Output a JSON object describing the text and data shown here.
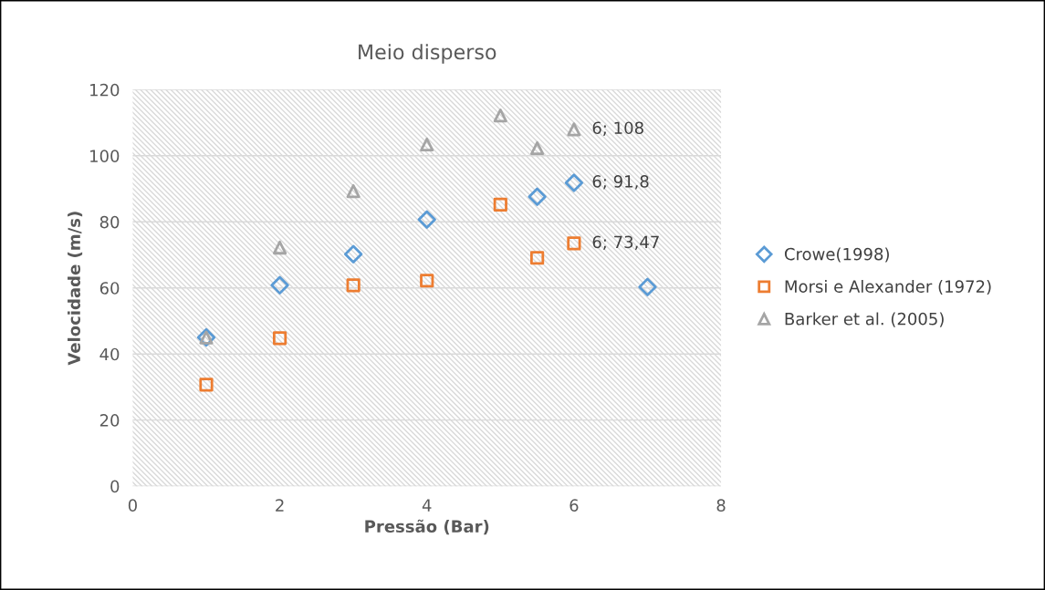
{
  "chart_data": {
    "type": "scatter",
    "title": "Meio disperso",
    "xlabel": "Pressão (Bar)",
    "ylabel": "Velocidade (m/s)",
    "xlim": [
      0,
      8
    ],
    "xticks": [
      0,
      2,
      4,
      6,
      8
    ],
    "ylim": [
      0,
      120
    ],
    "yticks": [
      0,
      20,
      40,
      60,
      80,
      100,
      120
    ],
    "grid": "y",
    "legend": "right",
    "series": [
      {
        "name": "Crowe(1998)",
        "color": "#5b9bd5",
        "marker": "diamond",
        "x": [
          1,
          2,
          3,
          4,
          5.5,
          6,
          7
        ],
        "values": [
          45,
          60.8,
          70.2,
          80.7,
          87.6,
          91.8,
          60.3
        ],
        "value_labels": [
          null,
          null,
          null,
          null,
          null,
          "6; 91,8",
          null
        ]
      },
      {
        "name": "Morsi e Alexander (1972)",
        "color": "#ed7d31",
        "marker": "square",
        "x": [
          1,
          2,
          3,
          4,
          5,
          5.5,
          6
        ],
        "values": [
          30.7,
          44.8,
          60.8,
          62.2,
          85.2,
          69.1,
          73.47
        ],
        "value_labels": [
          null,
          null,
          null,
          null,
          null,
          null,
          "6; 73,47"
        ]
      },
      {
        "name": "Barker et al. (2005)",
        "color": "#a5a5a5",
        "marker": "triangle",
        "x": [
          1,
          2,
          3,
          4,
          5,
          5.5,
          6
        ],
        "values": [
          45,
          72.2,
          89.3,
          103.4,
          112.2,
          102.3,
          108
        ],
        "value_labels": [
          null,
          null,
          null,
          null,
          null,
          null,
          "6; 108"
        ]
      }
    ]
  }
}
